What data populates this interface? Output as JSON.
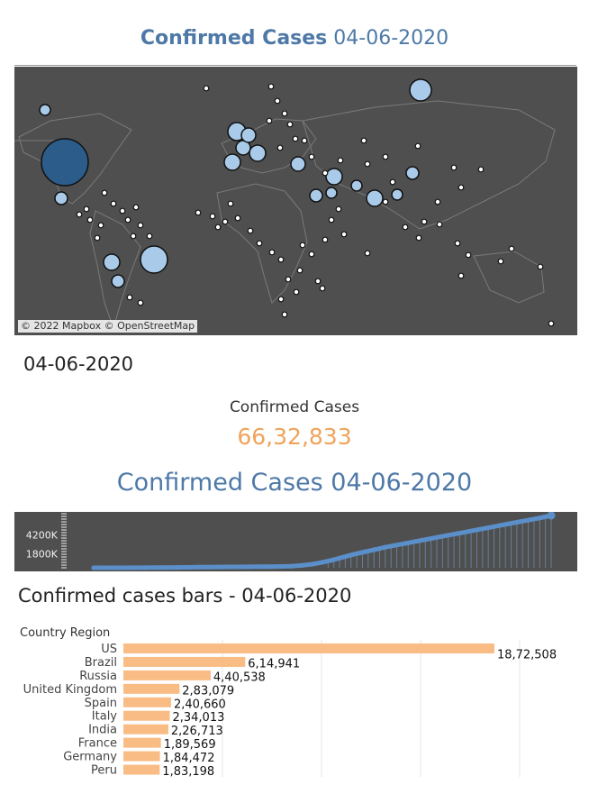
{
  "map_section": {
    "title_bold": "Confirmed Cases",
    "title_date": "04-06-2020",
    "attribution": "© 2022 Mapbox © OpenStreetMap",
    "colors": {
      "background": "#4f4f4f",
      "land_lines": "#7a7a7a",
      "bubble_light": "#a9cbe9",
      "bubble_dark": "#2b5c8a"
    }
  },
  "date_label": "04-06-2020",
  "kpi": {
    "label": "Confirmed Cases",
    "value": "66,32,833",
    "color": "#f0a35b"
  },
  "line_section": {
    "title": "Confirmed Cases 04-06-2020",
    "color": "#5b8fc9"
  },
  "bars_section": {
    "title": "Confirmed cases bars - 04-06-2020",
    "color": "#f8bc84"
  },
  "chart_data": [
    {
      "type": "line",
      "x_range": [
        "start",
        "04-06-2020"
      ],
      "y_ticks": [
        "4200K",
        "1800K"
      ],
      "ylim": [
        0,
        6632833
      ],
      "grid": false,
      "series": [
        {
          "values": [
            0,
            1000,
            2000,
            5000,
            8000,
            12000,
            20000,
            30000,
            43000,
            60000,
            80000,
            95000,
            105000,
            110000,
            118000,
            125000,
            135000,
            150000,
            170000,
            210000,
            300000,
            450000,
            700000,
            1000000,
            1350000,
            1700000,
            2000000,
            2300000,
            2600000,
            2850000,
            3100000,
            3350000,
            3600000,
            3850000,
            4100000,
            4350000,
            4600000,
            4850000,
            5100000,
            5350000,
            5600000,
            5850000,
            6100000,
            6350000,
            6632833
          ]
        }
      ]
    },
    {
      "type": "bar",
      "orientation": "horizontal",
      "ylabel": "Country Region",
      "categories": [
        "US",
        "Brazil",
        "Russia",
        "United Kingdom",
        "Spain",
        "Italy",
        "India",
        "France",
        "Germany",
        "Peru"
      ],
      "values": [
        1872508,
        614941,
        440538,
        283079,
        240660,
        234013,
        226713,
        189569,
        184472,
        183198
      ],
      "value_labels": [
        "18,72,508",
        "6,14,941",
        "4,40,538",
        "2,83,079",
        "2,40,660",
        "2,34,013",
        "2,26,713",
        "1,89,569",
        "1,84,472",
        "1,83,198"
      ],
      "xlim": [
        0,
        2000000
      ],
      "grid": true
    }
  ]
}
